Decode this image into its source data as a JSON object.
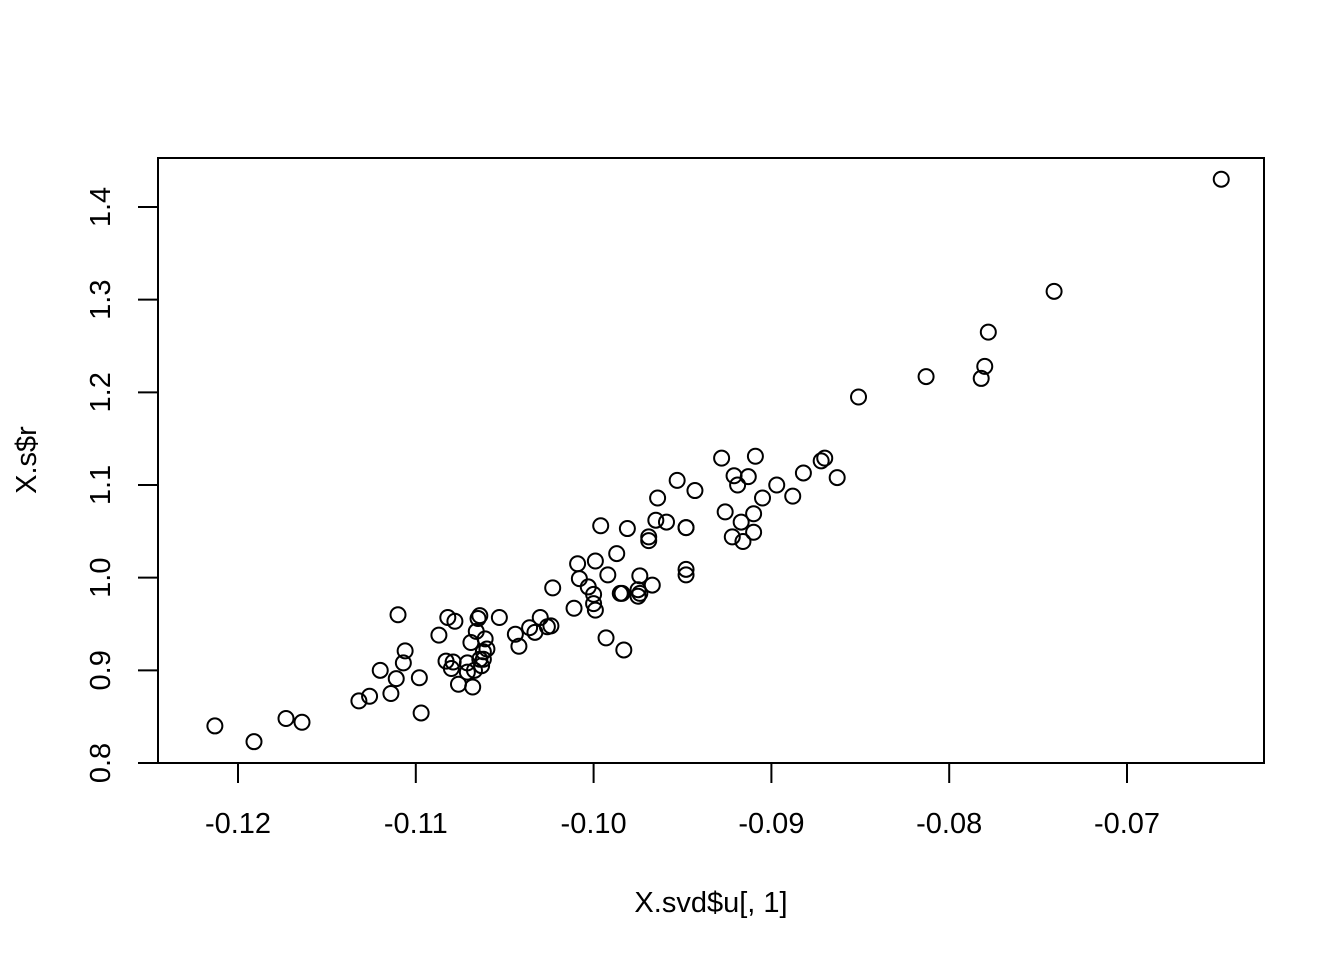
{
  "chart_data": {
    "type": "scatter",
    "title": "",
    "xlabel": "X.svd$u[, 1]",
    "ylabel": "X.s$r",
    "xlim": [
      -0.1244,
      -0.0624
    ],
    "ylim": [
      0.8,
      1.455
    ],
    "xticks": [
      -0.12,
      -0.11,
      -0.1,
      -0.09,
      -0.08,
      -0.07
    ],
    "xtick_labels": [
      "-0.12",
      "-0.11",
      "-0.10",
      "-0.09",
      "-0.08",
      "-0.07"
    ],
    "yticks": [
      0.8,
      0.9,
      1.0,
      1.1,
      1.2,
      1.3,
      1.4
    ],
    "ytick_labels": [
      "0.8",
      "0.9",
      "1.0",
      "1.1",
      "1.2",
      "1.3",
      "1.4"
    ],
    "grid": false,
    "legend": "none",
    "marker": "open-circle",
    "points": [
      [
        -0.1213,
        0.84
      ],
      [
        -0.1191,
        0.823
      ],
      [
        -0.1173,
        0.848
      ],
      [
        -0.1164,
        0.844
      ],
      [
        -0.1132,
        0.867
      ],
      [
        -0.1126,
        0.872
      ],
      [
        -0.112,
        0.9
      ],
      [
        -0.1114,
        0.875
      ],
      [
        -0.1111,
        0.891
      ],
      [
        -0.111,
        0.96
      ],
      [
        -0.1107,
        0.908
      ],
      [
        -0.1106,
        0.921
      ],
      [
        -0.1098,
        0.892
      ],
      [
        -0.1097,
        0.854
      ],
      [
        -0.1087,
        0.938
      ],
      [
        -0.1083,
        0.91
      ],
      [
        -0.1082,
        0.957
      ],
      [
        -0.108,
        0.902
      ],
      [
        -0.1079,
        0.909
      ],
      [
        -0.1078,
        0.953
      ],
      [
        -0.1076,
        0.885
      ],
      [
        -0.1071,
        0.908
      ],
      [
        -0.1071,
        0.898
      ],
      [
        -0.1069,
        0.93
      ],
      [
        -0.1068,
        0.882
      ],
      [
        -0.1067,
        0.9
      ],
      [
        -0.1066,
        0.942
      ],
      [
        -0.1065,
        0.956
      ],
      [
        -0.1064,
        0.959
      ],
      [
        -0.1064,
        0.912
      ],
      [
        -0.1063,
        0.905
      ],
      [
        -0.1062,
        0.92
      ],
      [
        -0.1062,
        0.912
      ],
      [
        -0.1061,
        0.934
      ],
      [
        -0.106,
        0.923
      ],
      [
        -0.1053,
        0.957
      ],
      [
        -0.1044,
        0.939
      ],
      [
        -0.1042,
        0.926
      ],
      [
        -0.1036,
        0.946
      ],
      [
        -0.1033,
        0.941
      ],
      [
        -0.103,
        0.957
      ],
      [
        -0.1026,
        0.947
      ],
      [
        -0.1024,
        0.948
      ],
      [
        -0.1023,
        0.989
      ],
      [
        -0.1011,
        0.967
      ],
      [
        -0.1009,
        1.015
      ],
      [
        -0.1008,
        0.999
      ],
      [
        -0.1003,
        0.99
      ],
      [
        -0.1,
        0.982
      ],
      [
        -0.1,
        0.972
      ],
      [
        -0.0999,
        0.965
      ],
      [
        -0.0999,
        1.018
      ],
      [
        -0.0996,
        1.056
      ],
      [
        -0.0993,
        0.935
      ],
      [
        -0.0992,
        1.003
      ],
      [
        -0.0987,
        1.026
      ],
      [
        -0.0985,
        0.983
      ],
      [
        -0.0984,
        0.983
      ],
      [
        -0.0983,
        0.922
      ],
      [
        -0.0981,
        1.053
      ],
      [
        -0.0975,
        0.98
      ],
      [
        -0.0975,
        0.987
      ],
      [
        -0.0974,
        1.002
      ],
      [
        -0.0974,
        0.983
      ],
      [
        -0.0969,
        1.044
      ],
      [
        -0.0969,
        1.04
      ],
      [
        -0.0967,
        0.992
      ],
      [
        -0.0965,
        1.062
      ],
      [
        -0.0964,
        1.086
      ],
      [
        -0.0959,
        1.06
      ],
      [
        -0.0953,
        1.105
      ],
      [
        -0.0948,
        1.054
      ],
      [
        -0.0948,
        1.054
      ],
      [
        -0.0948,
        1.009
      ],
      [
        -0.0948,
        1.003
      ],
      [
        -0.0943,
        1.094
      ],
      [
        -0.0928,
        1.129
      ],
      [
        -0.0926,
        1.071
      ],
      [
        -0.0922,
        1.044
      ],
      [
        -0.0921,
        1.11
      ],
      [
        -0.0919,
        1.1
      ],
      [
        -0.0917,
        1.06
      ],
      [
        -0.0916,
        1.039
      ],
      [
        -0.0913,
        1.109
      ],
      [
        -0.091,
        1.049
      ],
      [
        -0.091,
        1.069
      ],
      [
        -0.0909,
        1.131
      ],
      [
        -0.0905,
        1.086
      ],
      [
        -0.0897,
        1.1
      ],
      [
        -0.0888,
        1.088
      ],
      [
        -0.0882,
        1.113
      ],
      [
        -0.0872,
        1.126
      ],
      [
        -0.087,
        1.129
      ],
      [
        -0.0863,
        1.108
      ],
      [
        -0.0851,
        1.195
      ],
      [
        -0.0813,
        1.217
      ],
      [
        -0.0782,
        1.215
      ],
      [
        -0.078,
        1.228
      ],
      [
        -0.0778,
        1.265
      ],
      [
        -0.0741,
        1.309
      ],
      [
        -0.0647,
        1.43
      ]
    ]
  }
}
